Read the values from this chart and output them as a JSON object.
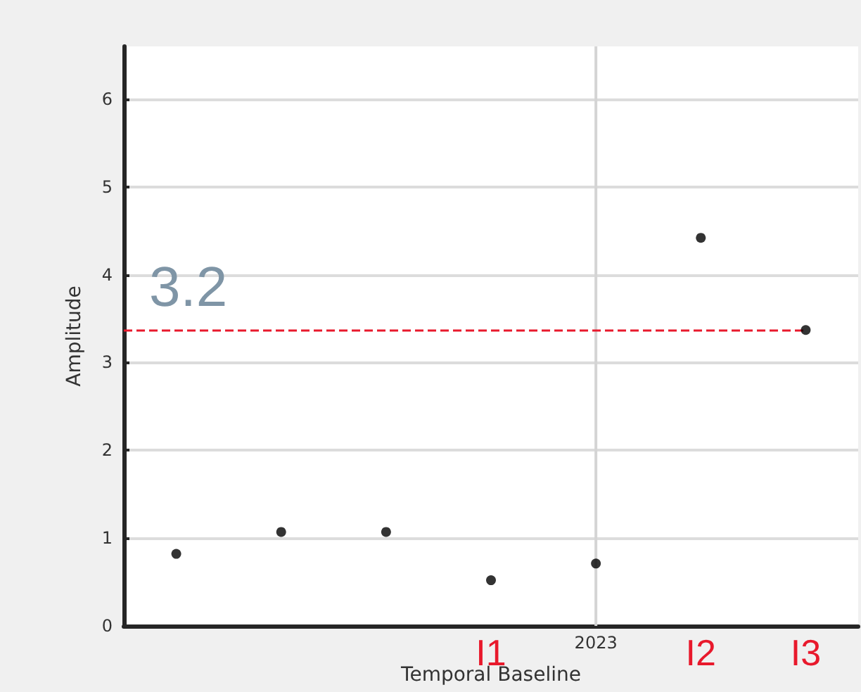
{
  "chart_data": {
    "type": "scatter",
    "xlabel": "Temporal Baseline",
    "ylabel": "Amplitude",
    "categories": [
      null,
      null,
      null,
      null,
      null,
      null,
      null
    ],
    "values": [
      0.82,
      1.07,
      1.07,
      0.52,
      0.71,
      4.42,
      3.37
    ],
    "color": "#000000",
    "marker": "circle",
    "ylim": [
      0,
      6.6
    ],
    "yticks": [
      0,
      1,
      2,
      3,
      4,
      5,
      6
    ],
    "grid": "y",
    "ref_lines": [
      {
        "axis": "y",
        "value": 3.37,
        "color": "#e8192c",
        "line_style": "dashed"
      }
    ],
    "annotations": [
      "3.2",
      "2023",
      "I1",
      "I2",
      "I3"
    ]
  }
}
